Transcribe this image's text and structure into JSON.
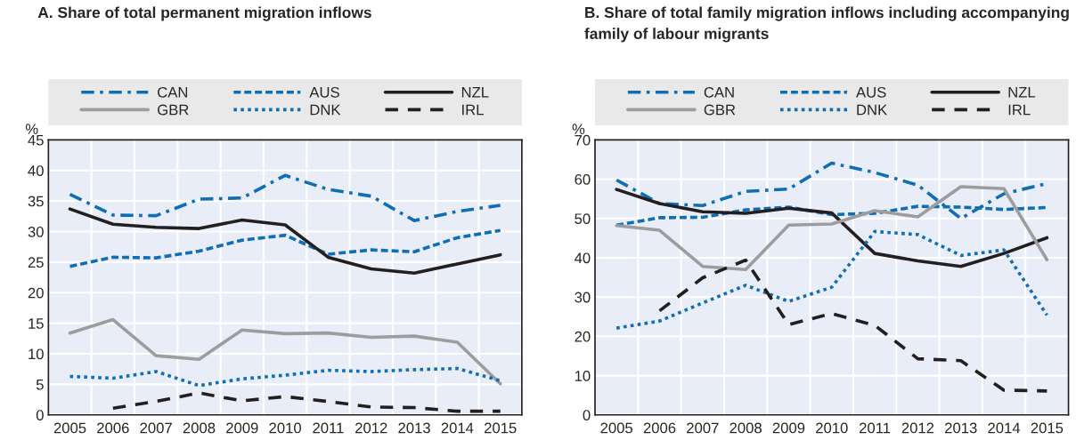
{
  "chart_data": [
    {
      "type": "line",
      "title": "A. Share of total permanent migration inflows",
      "ylabel": "%",
      "categories": [
        "2005",
        "2006",
        "2007",
        "2008",
        "2009",
        "2010",
        "2011",
        "2012",
        "2013",
        "2014",
        "2015"
      ],
      "ylim": [
        0,
        45
      ],
      "yticks": [
        0,
        5,
        10,
        15,
        20,
        25,
        30,
        35,
        40,
        45
      ],
      "grid": true,
      "legend": "top",
      "series": [
        {
          "name": "CAN",
          "color": "#0f6eb4",
          "line_style": "dashdot",
          "values": [
            36.1,
            32.7,
            32.6,
            35.3,
            35.5,
            39.2,
            36.9,
            35.8,
            31.8,
            33.3,
            34.3
          ]
        },
        {
          "name": "AUS",
          "color": "#0f6eb4",
          "line_style": "dashed",
          "values": [
            24.3,
            25.8,
            25.7,
            26.8,
            28.6,
            29.4,
            26.3,
            27.0,
            26.7,
            29.0,
            30.2
          ]
        },
        {
          "name": "NZL",
          "color": "#231f20",
          "line_style": "solid",
          "values": [
            33.7,
            31.2,
            30.7,
            30.5,
            31.9,
            31.1,
            25.8,
            23.9,
            23.2,
            24.7,
            26.2
          ]
        },
        {
          "name": "GBR",
          "color": "#9d9d9f",
          "line_style": "solid",
          "values": [
            13.4,
            15.6,
            9.7,
            9.1,
            13.9,
            13.3,
            13.4,
            12.7,
            12.9,
            11.9,
            5.1
          ]
        },
        {
          "name": "DNK",
          "color": "#0f6eb4",
          "line_style": "dotted",
          "values": [
            6.3,
            6.0,
            7.1,
            4.8,
            5.9,
            6.5,
            7.3,
            7.1,
            7.4,
            7.6,
            5.6
          ]
        },
        {
          "name": "IRL",
          "color": "#231f20",
          "line_style": "longdash",
          "values": [
            null,
            1.1,
            2.2,
            3.6,
            2.3,
            3.0,
            2.2,
            1.3,
            1.2,
            0.6,
            0.6
          ]
        }
      ]
    },
    {
      "type": "line",
      "title": "B. Share of total family migration inflows including accompanying family of labour migrants",
      "ylabel": "%",
      "categories": [
        "2005",
        "2006",
        "2007",
        "2008",
        "2009",
        "2010",
        "2011",
        "2012",
        "2013",
        "2014",
        "2015"
      ],
      "ylim": [
        0,
        70
      ],
      "yticks": [
        0,
        10,
        20,
        30,
        40,
        50,
        60,
        70
      ],
      "grid": true,
      "legend": "top",
      "series": [
        {
          "name": "CAN",
          "color": "#0f6eb4",
          "line_style": "dashdot",
          "values": [
            59.8,
            53.8,
            53.3,
            56.9,
            57.5,
            64.1,
            61.7,
            58.5,
            50.0,
            56.3,
            58.9
          ]
        },
        {
          "name": "AUS",
          "color": "#0f6eb4",
          "line_style": "dashed",
          "values": [
            48.3,
            50.2,
            50.3,
            52.2,
            52.9,
            51.0,
            51.3,
            53.1,
            52.9,
            52.3,
            52.8
          ]
        },
        {
          "name": "NZL",
          "color": "#231f20",
          "line_style": "solid",
          "values": [
            57.4,
            53.8,
            51.7,
            51.3,
            52.6,
            51.4,
            41.1,
            39.2,
            37.8,
            41.1,
            45.1
          ]
        },
        {
          "name": "GBR",
          "color": "#9d9d9f",
          "line_style": "solid",
          "values": [
            48.2,
            47.0,
            37.8,
            37.0,
            48.3,
            48.6,
            52.0,
            50.4,
            58.1,
            57.6,
            39.5
          ]
        },
        {
          "name": "DNK",
          "color": "#0f6eb4",
          "line_style": "dotted",
          "values": [
            22.1,
            23.9,
            28.5,
            33.0,
            28.9,
            32.5,
            46.7,
            45.9,
            40.6,
            42.0,
            25.4
          ]
        },
        {
          "name": "IRL",
          "color": "#231f20",
          "line_style": "longdash",
          "values": [
            null,
            26.5,
            34.9,
            39.4,
            23.0,
            25.8,
            22.8,
            14.3,
            13.8,
            6.3,
            6.1
          ]
        }
      ]
    }
  ]
}
